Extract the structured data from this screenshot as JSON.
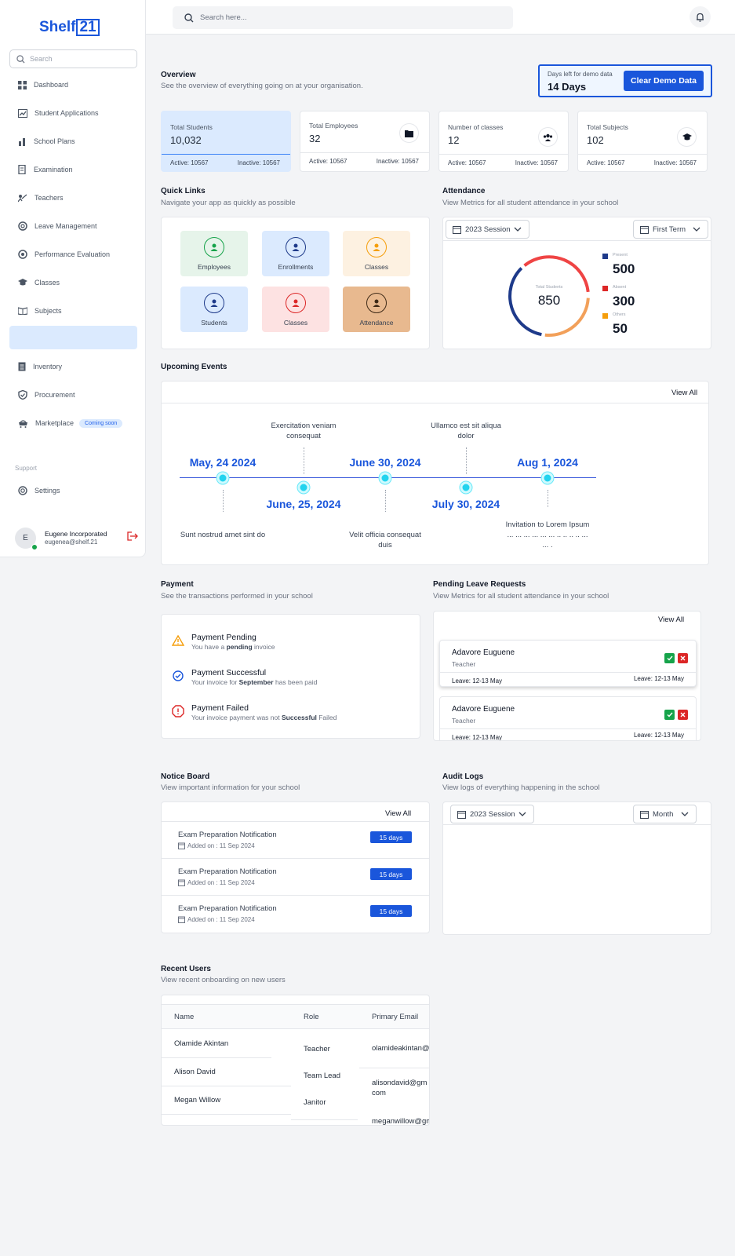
{
  "app": {
    "logo_text": "Shelf",
    "logo_num": "21"
  },
  "sidebar": {
    "search_placeholder": "Search",
    "items": [
      {
        "label": "Dashboard",
        "icon": "grid-icon"
      },
      {
        "label": "Student Applications",
        "icon": "chart-line-icon"
      },
      {
        "label": "School Plans",
        "icon": "bar-chart-icon"
      },
      {
        "label": "Examination",
        "icon": "document-icon"
      },
      {
        "label": "Teachers",
        "icon": "teacher-icon"
      },
      {
        "label": "Leave Management",
        "icon": "lifebuoy-icon"
      },
      {
        "label": "Performance Evaluation",
        "icon": "target-icon"
      },
      {
        "label": "Classes",
        "icon": "graduation-cap-icon"
      },
      {
        "label": "Subjects",
        "icon": "book-icon"
      },
      {
        "label": "",
        "icon": ""
      },
      {
        "label": "Inventory",
        "icon": "clipboard-icon"
      },
      {
        "label": "Procurement",
        "icon": "shield-icon"
      },
      {
        "label": "Marketplace",
        "icon": "cart-icon",
        "badge": "Coming soon"
      }
    ],
    "support_label": "Support",
    "settings_label": "Settings",
    "user": {
      "initial": "E",
      "name": "Eugene Incorporated",
      "email": "eugenea@shelf.21"
    }
  },
  "topbar": {
    "search_placeholder": "Search here..."
  },
  "overview": {
    "title": "Overview",
    "subtitle": "See the overview of everything going on at your organisation.",
    "demo": {
      "label": "Days left for demo data",
      "days": "14 Days",
      "button": "Clear Demo Data"
    }
  },
  "stats": [
    {
      "title": "Total Students",
      "value": "10,032",
      "active": "Active: 10567",
      "inactive": "Inactive: 10567"
    },
    {
      "title": "Total Employees",
      "value": "32",
      "active": "Active: 10567",
      "inactive": "Inactive: 10567"
    },
    {
      "title": "Number of classes",
      "value": "12",
      "active": "Active: 10567",
      "inactive": "Inactive: 10567"
    },
    {
      "title": "Total Subjects",
      "value": "102",
      "active": "Active: 10567",
      "inactive": "Inactive: 10567"
    }
  ],
  "quick_links": {
    "title": "Quick Links",
    "subtitle": "Navigate your app as quickly as possible",
    "items": [
      "Employees",
      "Enrollments",
      "Classes",
      "Students",
      "Classes",
      "Attendance"
    ]
  },
  "attendance": {
    "title": "Attendance",
    "subtitle": "View Metrics for all student attendance in your school",
    "session": "2023 Session",
    "term": "First Term",
    "center_label": "Total Students",
    "center_value": "850",
    "legend": [
      {
        "label": "Present",
        "value": "500",
        "color": "#1e3a8a"
      },
      {
        "label": "Absent",
        "value": "300",
        "color": "#dc2626"
      },
      {
        "label": "Others",
        "value": "50",
        "color": "#f59e0b"
      }
    ]
  },
  "events": {
    "title": "Upcoming Events",
    "view_all": "View All",
    "items": [
      {
        "date": "May, 24 2024",
        "text": "Sunt nostrud amet sint do"
      },
      {
        "date": "June, 25, 2024",
        "text": "Exercitation veniam consequat"
      },
      {
        "date": "June 30, 2024",
        "text": "Velit officia consequat duis"
      },
      {
        "date": "July 30, 2024",
        "text": "Ullamco est sit aliqua dolor"
      },
      {
        "date": "Aug 1, 2024",
        "text": "Invitation to Lorem Ipsum ... ... ... ... ... ... .. .. .. .. ... ... ."
      }
    ]
  },
  "payment": {
    "title": "Payment",
    "subtitle": "See the transactions performed in your school",
    "items": [
      {
        "title": "Payment Pending",
        "pre": "You have a ",
        "bold": "pending",
        "post": " invoice"
      },
      {
        "title": "Payment Successful",
        "pre": "Your invoice for ",
        "bold": "September",
        "post": " has been paid"
      },
      {
        "title": "Payment Failed",
        "pre": "Your invoice payment was not ",
        "bold": "Successful",
        "post": "  Failed"
      }
    ]
  },
  "leave": {
    "title": "Pending Leave Requests",
    "subtitle": "View Metrics for all student attendance in your school",
    "view_all": "View All",
    "items": [
      {
        "name": "Adavore Euguene",
        "role": "Teacher",
        "leave1": "Leave: 12-13 May",
        "leave2": "Leave: 12-13 May"
      },
      {
        "name": "Adavore Euguene",
        "role": "Teacher",
        "leave1": "Leave: 12-13 May",
        "leave2": "Leave: 12-13 May"
      }
    ]
  },
  "notice": {
    "title": "Notice Board",
    "subtitle": "View important information for your school",
    "view_all": "View All",
    "items": [
      {
        "title": "Exam Preparation Notification",
        "date": "Added on : 11 Sep 2024",
        "badge": "15 days"
      },
      {
        "title": "Exam Preparation Notification",
        "date": "Added on : 11 Sep 2024",
        "badge": "15 days"
      },
      {
        "title": "Exam Preparation Notification",
        "date": "Added on : 11 Sep 2024",
        "badge": "15 days"
      }
    ]
  },
  "audit": {
    "title": "Audit Logs",
    "subtitle": "View logs of everything happening in the school",
    "session": "2023 Session",
    "period": "Month"
  },
  "recent_users": {
    "title": "Recent Users",
    "subtitle": "View recent onboarding on new users",
    "columns": [
      "Name",
      "Role",
      "Primary Email"
    ],
    "rows": [
      {
        "name": "Olamide Akintan",
        "role": "Teacher",
        "email": "olamideakintan@"
      },
      {
        "name": "Alison David",
        "role": "Team Lead",
        "email": "alisondavid@gm com"
      },
      {
        "name": "Megan Willow",
        "role": "Janitor",
        "email": "meganwillow@gm"
      }
    ]
  }
}
